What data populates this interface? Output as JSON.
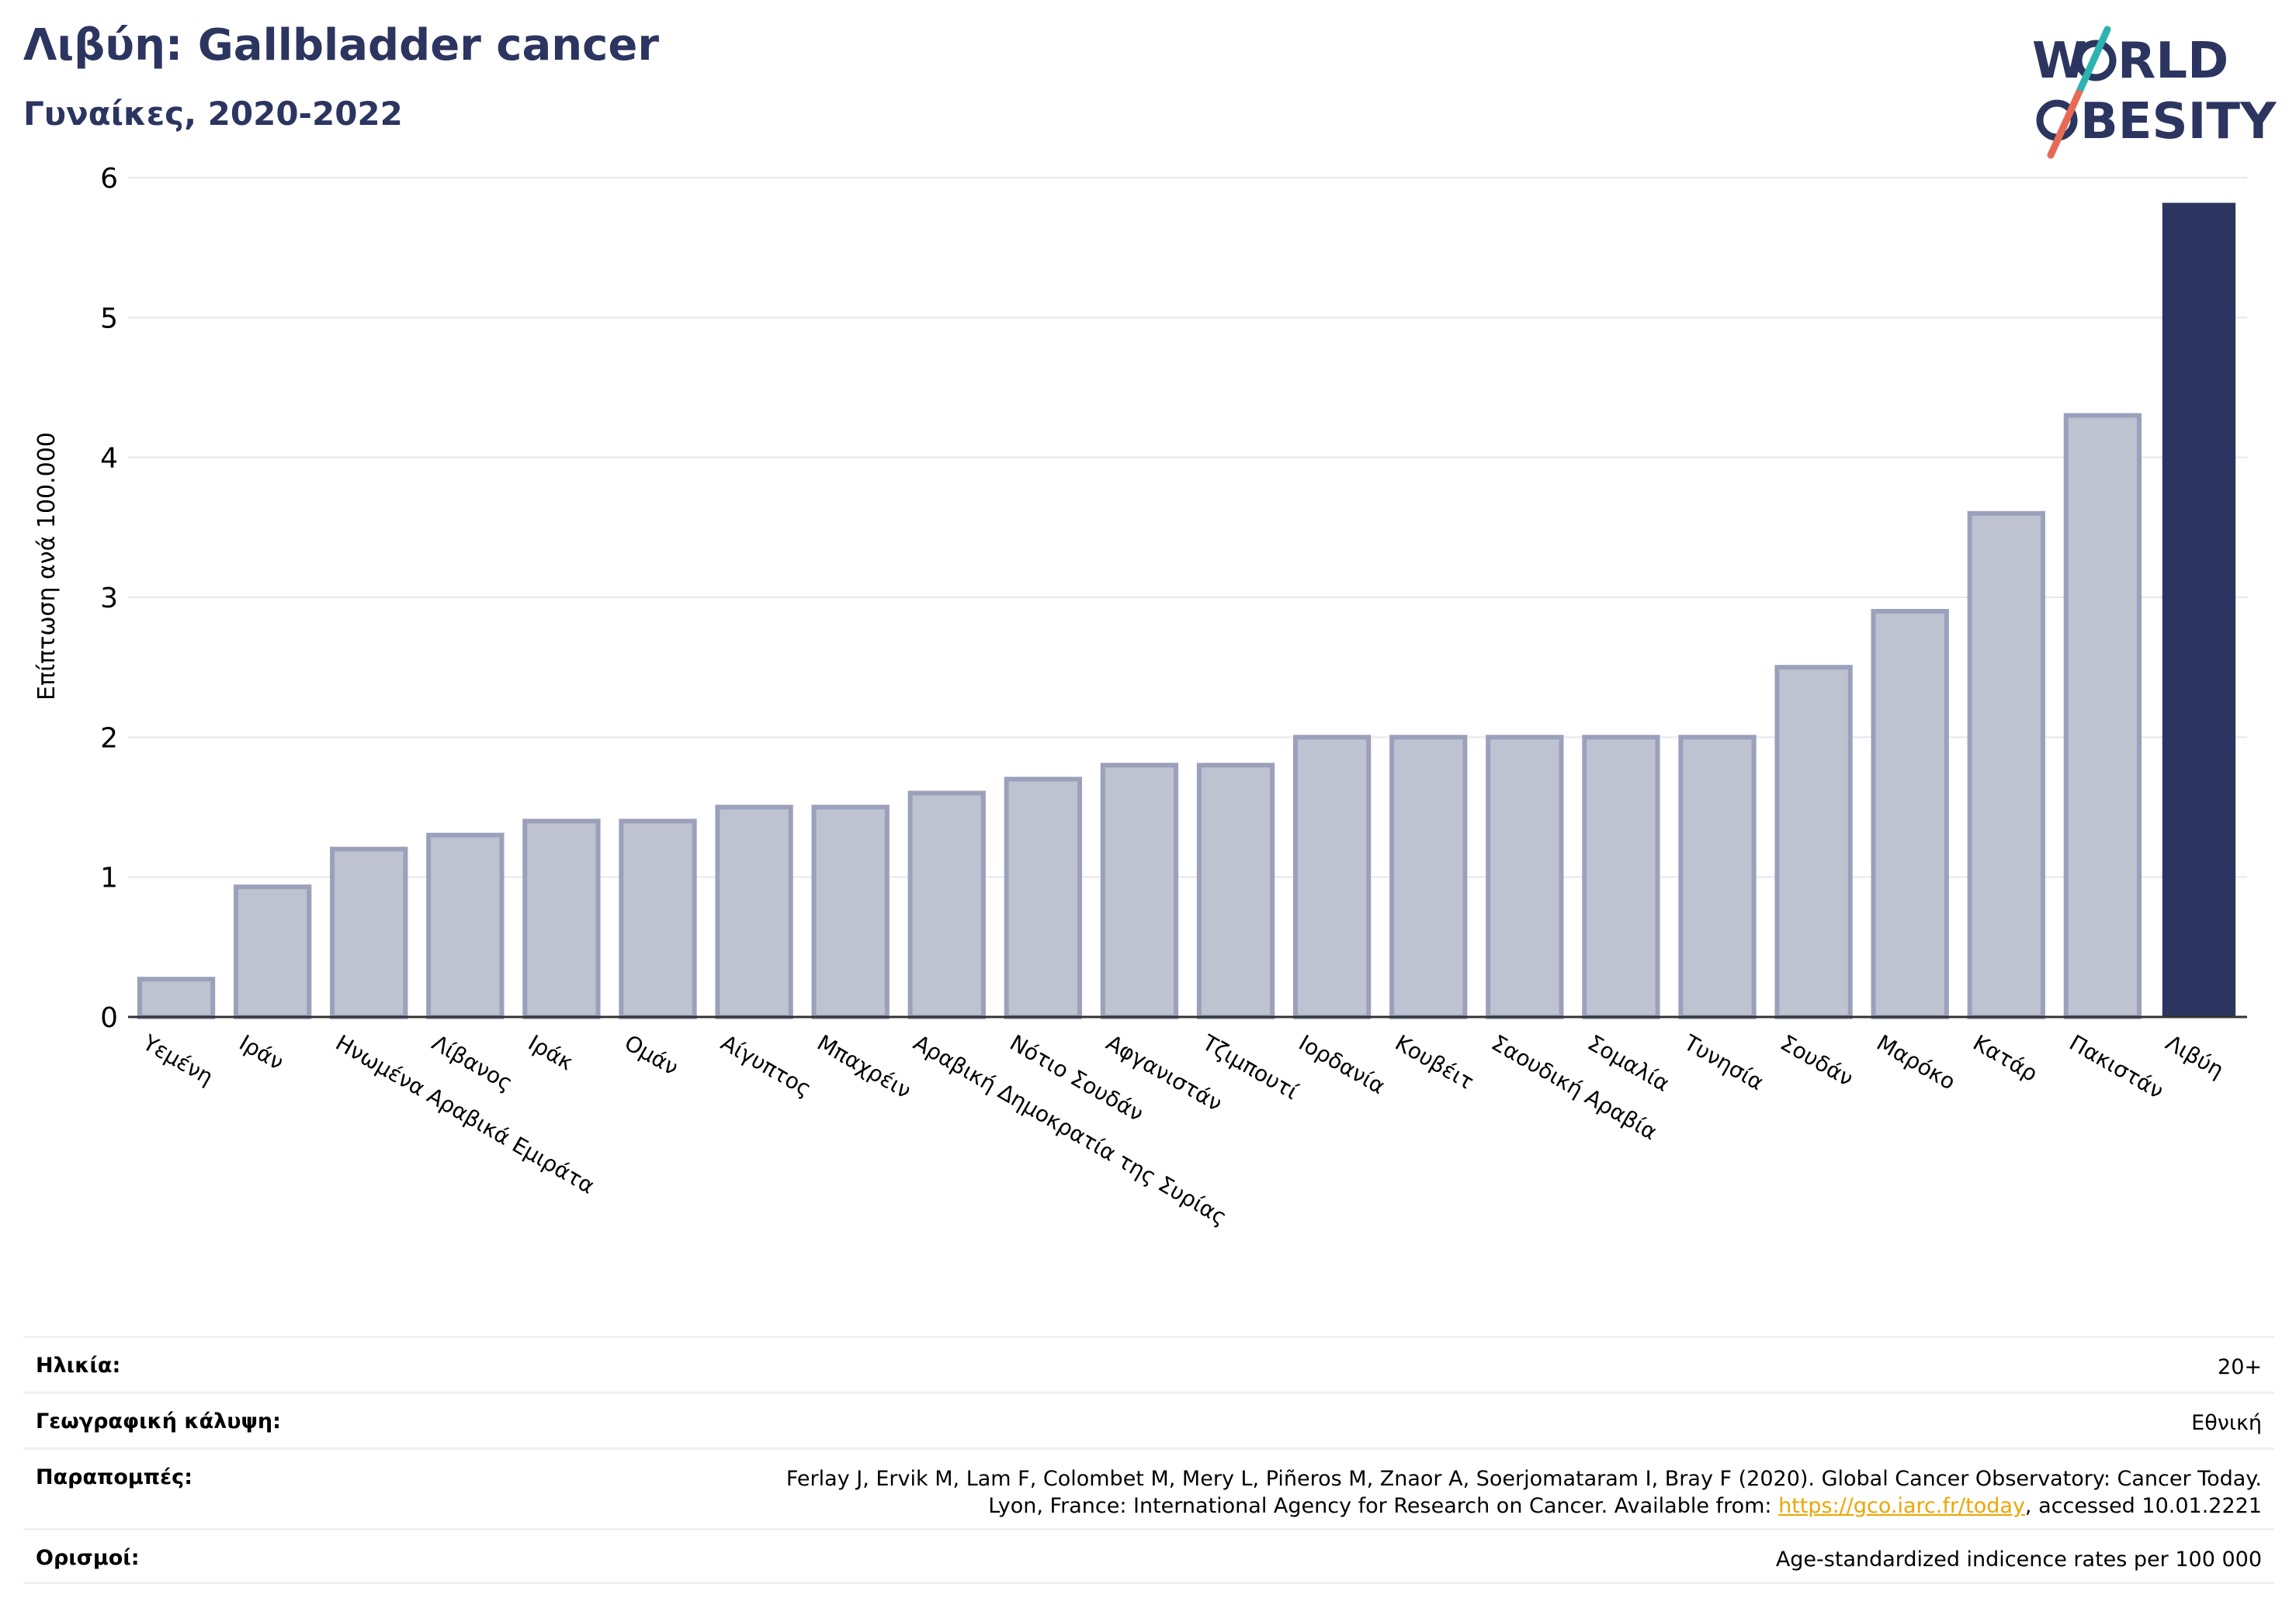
{
  "header": {
    "title": "Λιβύη: Gallbladder cancer",
    "subtitle": "Γυναίκες, 2020-2022",
    "logo_text": [
      "W",
      "RLD",
      "BESITY"
    ]
  },
  "chart_data": {
    "type": "bar",
    "ylabel": "Επίπτωση ανά 100.000",
    "ylim": [
      0,
      6
    ],
    "yticks": [
      0,
      1,
      2,
      3,
      4,
      5,
      6
    ],
    "grid": true,
    "categories": [
      "Υεμένη",
      "Ιράν",
      "Ηνωμένα Αραβικά Εμιράτα",
      "Λίβανος",
      "Ιράκ",
      "Ομάν",
      "Αίγυπτος",
      "Μπαχρέιν",
      "Αραβική Δημοκρατία της Συρίας",
      "Νότιο Σουδάν",
      "Αφγανιστάν",
      "Τζιμπουτί",
      "Ιορδανία",
      "Κουβέιτ",
      "Σαουδική Αραβία",
      "Σομαλία",
      "Τυνησία",
      "Σουδάν",
      "Μαρόκο",
      "Κατάρ",
      "Πακιστάν",
      "Λιβύη"
    ],
    "values": [
      0.27,
      0.93,
      1.2,
      1.3,
      1.4,
      1.4,
      1.5,
      1.5,
      1.6,
      1.7,
      1.8,
      1.8,
      2.0,
      2.0,
      2.0,
      2.0,
      2.0,
      2.5,
      2.9,
      3.6,
      4.3,
      5.82
    ],
    "highlight": "Λιβύη",
    "colors": {
      "bar": "#bfc2d0",
      "bar_edge": "#9ba0bb",
      "highlight": "#2b3560",
      "grid": "#e6e8ee",
      "axis": "#333333"
    }
  },
  "info": {
    "age_label": "Ηλικία:",
    "age_value": "20+",
    "coverage_label": "Γεωγραφική κάλυψη:",
    "coverage_value": "Εθνική",
    "refs_label": "Παραπομπές:",
    "refs_line1": "Ferlay J, Ervik M, Lam F, Colombet M, Mery L, Piñeros M, Znaor A, Soerjomataram I, Bray F (2020). Global Cancer Observatory: Cancer Today.",
    "refs_line2_pre": "Lyon, France: International Agency for Research on Cancer. Available from: ",
    "refs_link": "https://gco.iarc.fr/today",
    "refs_line2_post": ", accessed 10.01.2221",
    "defs_label": "Ορισμοί:",
    "defs_value": "Age-standardized indicence rates per 100 000"
  }
}
